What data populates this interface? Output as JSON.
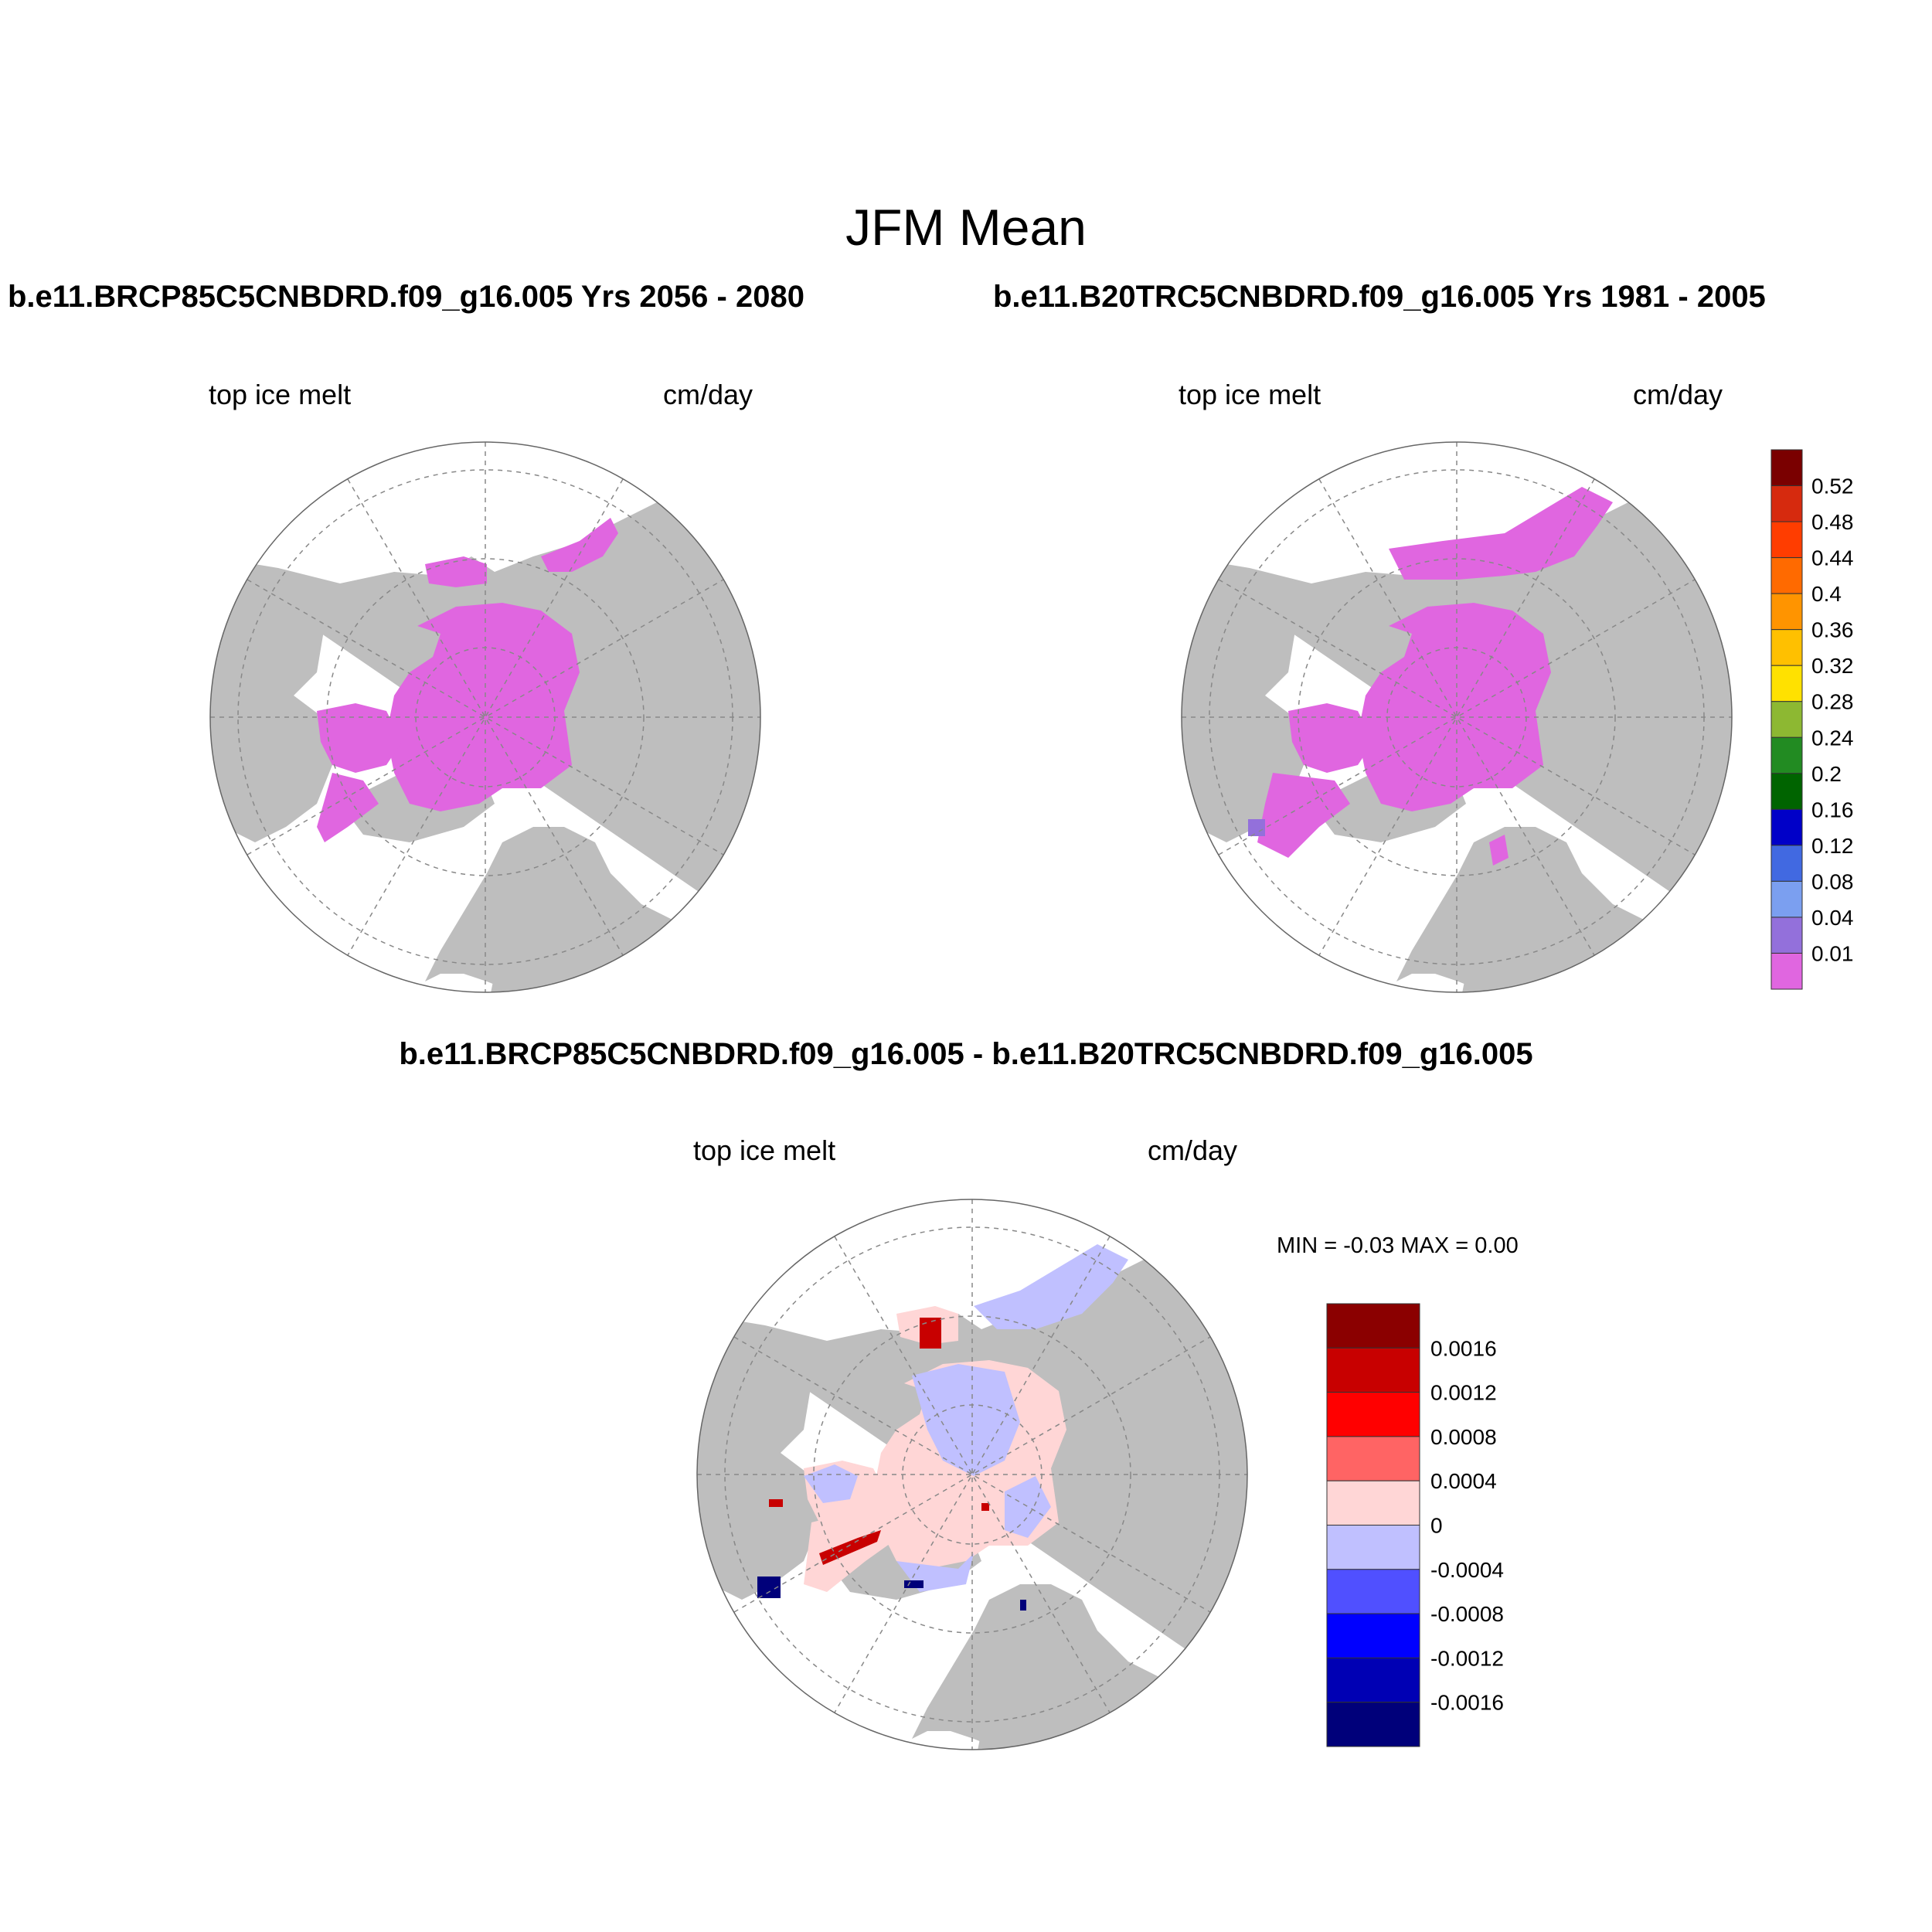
{
  "figure": {
    "title": "JFM Mean",
    "panel_top_left": {
      "case": "b.e11.BRCP85C5CNBDRD.f09_g16.005  Yrs 2056 - 2080",
      "variable": "top ice melt",
      "units": "cm/day"
    },
    "panel_top_right": {
      "case": "b.e11.B20TRC5CNBDRD.f09_g16.005  Yrs 1981 - 2005",
      "variable": "top ice melt",
      "units": "cm/day"
    },
    "panel_diff": {
      "case": "b.e11.BRCP85C5CNBDRD.f09_g16.005 - b.e11.B20TRC5CNBDRD.f09_g16.005",
      "variable": "top ice melt",
      "units": "cm/day",
      "minmax": "MIN =  -0.03 MAX =   0.00"
    }
  },
  "colorbar_abs": {
    "labels": [
      "0.52",
      "0.48",
      "0.44",
      "0.4",
      "0.36",
      "0.32",
      "0.28",
      "0.24",
      "0.2",
      "0.16",
      "0.12",
      "0.08",
      "0.04",
      "0.01"
    ],
    "colors": [
      "#7a0000",
      "#d62a0e",
      "#ff3d00",
      "#ff6a00",
      "#ff9400",
      "#ffc000",
      "#ffe100",
      "#8db832",
      "#228b22",
      "#006400",
      "#0000c8",
      "#4169e1",
      "#7b9ff0",
      "#9370db",
      "#e066e0"
    ]
  },
  "colorbar_diff": {
    "labels": [
      "0.0016",
      "0.0012",
      "0.0008",
      "0.0004",
      "0",
      "-0.0004",
      "-0.0008",
      "-0.0012",
      "-0.0016"
    ],
    "colors": [
      "#8b0000",
      "#c80000",
      "#ff0000",
      "#ff6464",
      "#ffd6d6",
      "#c0c0ff",
      "#5050ff",
      "#0000ff",
      "#0000b4",
      "#00007a"
    ]
  },
  "colors": {
    "land": "#bebebe",
    "ocean": "#ffffff",
    "ice_abs": "#e066e0",
    "ice_diff_pos": "#ffd6d6",
    "ice_diff_neg": "#c0c0ff"
  }
}
